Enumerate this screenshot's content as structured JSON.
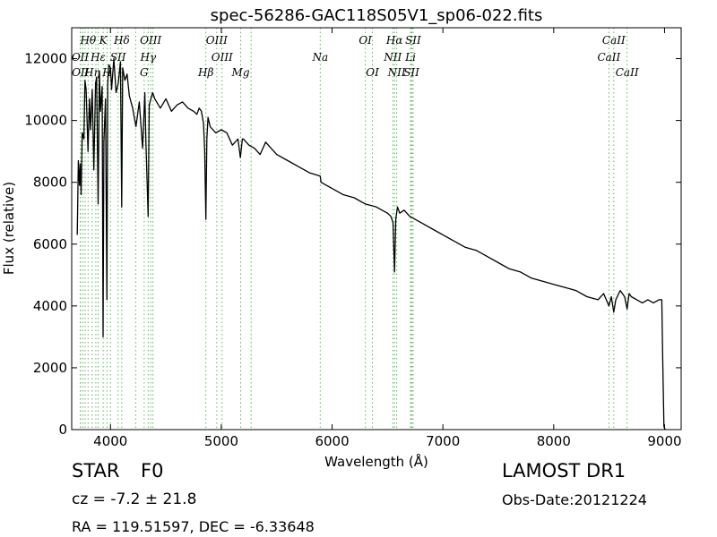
{
  "chart_data": {
    "type": "line",
    "title": "spec-56286-GAC118S05V1_sp06-022.fits",
    "xlabel": "Wavelength (Å)",
    "ylabel": "Flux (relative)",
    "xlim": [
      3650,
      9150
    ],
    "ylim": [
      0,
      13000
    ],
    "xticks": [
      4000,
      5000,
      6000,
      7000,
      8000,
      9000
    ],
    "yticks": [
      0,
      2000,
      4000,
      6000,
      8000,
      10000,
      12000
    ],
    "grid": false,
    "line_color": "#000000",
    "marker_color": "#5cb85c",
    "series": [
      {
        "x": [
          3700,
          3710,
          3720,
          3727,
          3735,
          3745,
          3760,
          3770,
          3780,
          3797,
          3810,
          3820,
          3835,
          3850,
          3865,
          3875,
          3889,
          3900,
          3910,
          3925,
          3933,
          3940,
          3955,
          3968,
          3975,
          3985,
          4000,
          4010,
          4030,
          4050,
          4070,
          4090,
          4101,
          4110,
          4130,
          4150,
          4170,
          4200,
          4230,
          4260,
          4290,
          4310,
          4320,
          4340,
          4350,
          4380,
          4400,
          4450,
          4500,
          4550,
          4600,
          4650,
          4700,
          4750,
          4780,
          4800,
          4820,
          4840,
          4850,
          4861,
          4870,
          4880,
          4900,
          4950,
          5000,
          5050,
          5100,
          5150,
          5172,
          5190,
          5200,
          5250,
          5300,
          5350,
          5400,
          5450,
          5500,
          5600,
          5700,
          5800,
          5893,
          5900,
          6000,
          6100,
          6200,
          6300,
          6400,
          6450,
          6500,
          6530,
          6550,
          6563,
          6575,
          6590,
          6610,
          6650,
          6700,
          6800,
          6900,
          7000,
          7100,
          7200,
          7300,
          7400,
          7500,
          7600,
          7700,
          7800,
          7900,
          8000,
          8100,
          8200,
          8300,
          8400,
          8450,
          8498,
          8520,
          8542,
          8560,
          8600,
          8640,
          8662,
          8680,
          8700,
          8750,
          8800,
          8850,
          8900,
          8950,
          8975,
          8985,
          8995,
          9005
        ],
        "y": [
          6300,
          8700,
          7900,
          8600,
          7600,
          9600,
          9400,
          11300,
          11000,
          9000,
          10700,
          9700,
          11000,
          8400,
          11200,
          11400,
          7300,
          11600,
          10300,
          11100,
          3000,
          9300,
          10700,
          4200,
          11200,
          11800,
          11700,
          11000,
          12000,
          10900,
          11200,
          11900,
          7200,
          11700,
          11300,
          11500,
          10800,
          10400,
          9800,
          10600,
          9100,
          10900,
          9300,
          6900,
          10500,
          10900,
          10700,
          10400,
          10700,
          10300,
          10500,
          10600,
          10400,
          10300,
          10200,
          10400,
          10300,
          9900,
          9000,
          6800,
          9400,
          10100,
          9800,
          9600,
          9700,
          9600,
          9200,
          9400,
          8800,
          9400,
          9400,
          9200,
          9100,
          8900,
          9300,
          9100,
          8900,
          8700,
          8500,
          8300,
          8200,
          8000,
          7800,
          7600,
          7500,
          7300,
          7200,
          7100,
          7000,
          6900,
          6700,
          5100,
          6800,
          7200,
          7000,
          7100,
          6900,
          6700,
          6500,
          6300,
          6100,
          5900,
          5800,
          5600,
          5400,
          5200,
          5100,
          4900,
          4800,
          4700,
          4600,
          4500,
          4300,
          4200,
          4400,
          4000,
          4300,
          3800,
          4200,
          4500,
          4300,
          3900,
          4400,
          4300,
          4200,
          4100,
          4200,
          4100,
          4200,
          4200,
          2000,
          100,
          0
        ]
      }
    ],
    "lines": [
      {
        "name": "Hθ",
        "x": 3798,
        "row": 1
      },
      {
        "name": "K",
        "x": 3934,
        "row": 1
      },
      {
        "name": "Hδ",
        "x": 4102,
        "row": 1
      },
      {
        "name": "OIII",
        "x": 4363,
        "row": 1
      },
      {
        "name": "OIII",
        "x": 4959,
        "row": 1
      },
      {
        "name": "OI",
        "x": 6300,
        "row": 1
      },
      {
        "name": "Hα",
        "x": 6563,
        "row": 1
      },
      {
        "name": "SII",
        "x": 6731,
        "row": 1
      },
      {
        "name": "CaII",
        "x": 8542,
        "row": 1
      },
      {
        "name": "OII",
        "x": 3727,
        "row": 2
      },
      {
        "name": "Hε",
        "x": 3889,
        "row": 2
      },
      {
        "name": "SII",
        "x": 4068,
        "row": 2
      },
      {
        "name": "Hγ",
        "x": 4340,
        "row": 2
      },
      {
        "name": "OIII",
        "x": 5007,
        "row": 2
      },
      {
        "name": "Na",
        "x": 5893,
        "row": 2
      },
      {
        "name": "NII",
        "x": 6548,
        "row": 2
      },
      {
        "name": "Li",
        "x": 6708,
        "row": 2
      },
      {
        "name": "CaII",
        "x": 8498,
        "row": 2
      },
      {
        "name": "OII",
        "x": 3729,
        "row": 3
      },
      {
        "name": "Hη",
        "x": 3835,
        "row": 3
      },
      {
        "name": "H",
        "x": 3969,
        "row": 3
      },
      {
        "name": "G",
        "x": 4304,
        "row": 3
      },
      {
        "name": "Hβ",
        "x": 4861,
        "row": 3
      },
      {
        "name": "Mg",
        "x": 5175,
        "row": 3
      },
      {
        "name": "OI",
        "x": 6364,
        "row": 3
      },
      {
        "name": "NII",
        "x": 6583,
        "row": 3
      },
      {
        "name": "SII",
        "x": 6716,
        "row": 3
      },
      {
        "name": "CaII",
        "x": 8662,
        "row": 3
      }
    ],
    "extra_marker_x": [
      3750,
      3771,
      3868,
      4000,
      4227,
      4383,
      5269,
      6720
    ]
  },
  "info": {
    "class": "STAR",
    "subclass": "F0",
    "redshift": "cz = -7.2 ± 21.8",
    "coords": "RA = 119.51597, DEC = -6.33648",
    "survey": "LAMOST DR1",
    "obs_date": "Obs-Date:20121224"
  }
}
